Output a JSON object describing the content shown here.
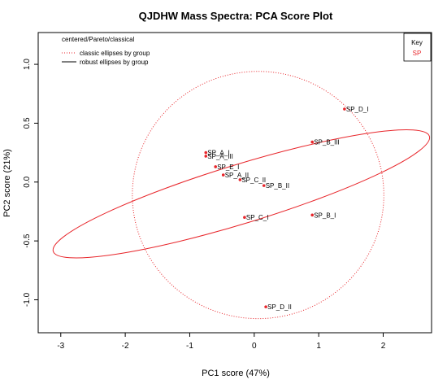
{
  "chart_data": {
    "type": "scatter",
    "title": "QJDHW Mass Spectra: PCA Score Plot",
    "xlabel": "PC1 score (47%)",
    "ylabel": "PC2 score (21%)",
    "xlim": [
      -3.35,
      2.75
    ],
    "ylim": [
      -1.28,
      1.27
    ],
    "x_ticks": [
      -3,
      -2,
      -1,
      0,
      1,
      2
    ],
    "y_ticks": [
      -1.0,
      -0.5,
      0.0,
      0.5,
      1.0
    ],
    "grid": false,
    "legend_topleft": {
      "title": "centered/Pareto/classical",
      "entries": [
        {
          "label": "classic ellipses by group",
          "style": "dotted"
        },
        {
          "label": "robust ellipses by group",
          "style": "solid"
        }
      ]
    },
    "legend_topright": {
      "title": "Key",
      "entries": [
        {
          "label": "SP",
          "color": "#e8262b"
        }
      ]
    },
    "series": [
      {
        "name": "SP",
        "color": "#e8262b",
        "points": [
          {
            "label": "SP_D_I",
            "x": 1.4,
            "y": 0.62
          },
          {
            "label": "SP_B_III",
            "x": 0.9,
            "y": 0.34
          },
          {
            "label": "SP_A_I",
            "x": -0.75,
            "y": 0.25
          },
          {
            "label": "SP_A_III",
            "x": -0.75,
            "y": 0.22
          },
          {
            "label": "SP_E_I",
            "x": -0.6,
            "y": 0.13
          },
          {
            "label": "SP_A_II",
            "x": -0.48,
            "y": 0.06
          },
          {
            "label": "SP_C_II",
            "x": -0.22,
            "y": 0.02
          },
          {
            "label": "SP_B_II",
            "x": 0.15,
            "y": -0.03
          },
          {
            "label": "SP_B_I",
            "x": 0.9,
            "y": -0.28
          },
          {
            "label": "SP_C_I",
            "x": -0.15,
            "y": -0.3
          },
          {
            "label": "SP_D_II",
            "x": 0.18,
            "y": -1.06
          }
        ]
      }
    ],
    "ellipses": [
      {
        "name": "classic ellipse SP",
        "style": "dotted",
        "color": "#e8262b",
        "cx": 0.06,
        "cy": -0.11,
        "rx": 1.95,
        "ry": 1.05,
        "angle_deg": 0
      },
      {
        "name": "robust ellipse SP",
        "style": "solid",
        "color": "#e8262b",
        "cx": -0.2,
        "cy": -0.1,
        "rx": 3.05,
        "ry": 0.25,
        "angle_deg": -17
      }
    ]
  }
}
